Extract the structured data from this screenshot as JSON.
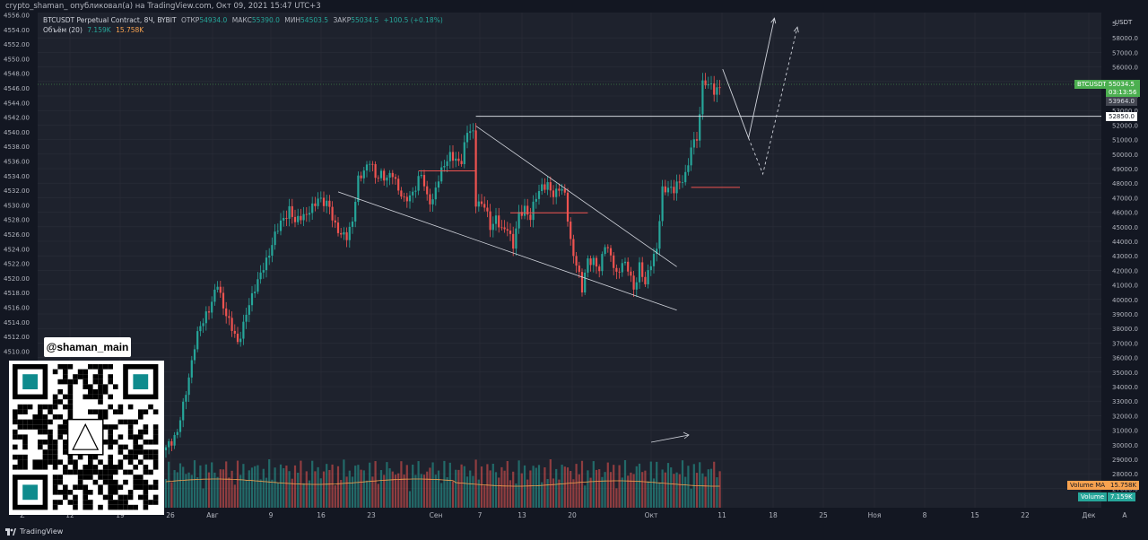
{
  "attribution": "crypto_shaman_ опубликовал(а) на TradingView.com, Окт 09, 2021 15:47 UTC+3",
  "footer_brand": "TradingView",
  "handle": "@shaman_main",
  "legend": {
    "symbol": "BTCUSDT Perpetual Contract, 8Ч, BYBIT",
    "open_label": "ОТКР",
    "open": "54934.0",
    "high_label": "МАКС",
    "high": "55390.0",
    "low_label": "МИН",
    "low": "54503.5",
    "close_label": "ЗАКР",
    "close": "55034.5",
    "change": "+100.5 (+0.18%)",
    "volume_label": "Объём (20)",
    "volume": "7.159K",
    "volume_ma": "15.758K"
  },
  "colors": {
    "up": "#26a69a",
    "down": "#ef5350",
    "background": "#1e222d",
    "grid": "#2a2e39",
    "annotation": "#d1d4dc",
    "price_tag": "#4caf50",
    "volume_ma_tag": "#f7a24f",
    "volume_tag": "#26a69a"
  },
  "tags": {
    "symbol_tag": "BTCUSDT",
    "last_price": "55034.5",
    "countdown": "03:13:56",
    "tag_53964": "53964.0",
    "tag_52850": "52850.0",
    "volume_ma_label": "Volume MA",
    "volume_ma_value": "15.758K",
    "volume_label": "Volume",
    "volume_value": "7.159K",
    "right_axis_unit": "USDT"
  },
  "chart_data": {
    "type": "candlestick",
    "interval": "8h",
    "right_axis": {
      "unit": "USDT",
      "ticks": [
        "5.",
        "58000.0",
        "57000.0",
        "56000.0",
        "55000.0",
        "54000.0",
        "53000.0",
        "52000.0",
        "51000.0",
        "50000.0",
        "49000.0",
        "48000.0",
        "47000.0",
        "46000.0",
        "45000.0",
        "44000.0",
        "43000.0",
        "42000.0",
        "41000.0",
        "40000.0",
        "39000.0",
        "38000.0",
        "37000.0",
        "36000.0",
        "35000.0",
        "34000.0",
        "33000.0",
        "32000.0",
        "31000.0",
        "30000.0",
        "29000.0",
        "28000.0",
        "27000.0"
      ],
      "range": [
        27000,
        59000
      ]
    },
    "left_axis": {
      "ticks": [
        "4556.00",
        "4554.00",
        "4552.00",
        "4550.00",
        "4548.00",
        "4546.00",
        "4544.00",
        "4542.00",
        "4540.00",
        "4538.00",
        "4536.00",
        "4534.00",
        "4532.00",
        "4530.00",
        "4528.00",
        "4526.00",
        "4524.00",
        "4522.00",
        "4520.00",
        "4518.00",
        "4516.00",
        "4514.00",
        "4512.00",
        "4510.00"
      ]
    },
    "x_axis": {
      "ticks": [
        "Z",
        "12",
        "19",
        "26",
        "Авг",
        "9",
        "16",
        "23",
        "Сен",
        "7",
        "13",
        "20",
        "Окт",
        "11",
        "18",
        "25",
        "Ноя",
        "8",
        "15",
        "22",
        "Дек",
        "A"
      ]
    },
    "price_path": [
      [
        0,
        30600
      ],
      [
        4,
        31800
      ],
      [
        6,
        33400
      ],
      [
        8,
        35500
      ],
      [
        10,
        37500
      ],
      [
        12,
        38800
      ],
      [
        14,
        39700
      ],
      [
        16,
        40300
      ],
      [
        18,
        41700
      ],
      [
        20,
        40200
      ],
      [
        22,
        39000
      ],
      [
        24,
        38300
      ],
      [
        25,
        37800
      ],
      [
        27,
        38800
      ],
      [
        29,
        40300
      ],
      [
        31,
        41500
      ],
      [
        33,
        42200
      ],
      [
        35,
        43200
      ],
      [
        37,
        44400
      ],
      [
        39,
        45300
      ],
      [
        41,
        46100
      ],
      [
        43,
        46600
      ],
      [
        45,
        45700
      ],
      [
        47,
        46300
      ],
      [
        49,
        46200
      ],
      [
        51,
        46700
      ],
      [
        53,
        47500
      ],
      [
        55,
        47000
      ],
      [
        57,
        46800
      ],
      [
        59,
        45600
      ],
      [
        61,
        44800
      ],
      [
        63,
        44900
      ],
      [
        65,
        45900
      ],
      [
        67,
        48500
      ],
      [
        69,
        49300
      ],
      [
        71,
        49900
      ],
      [
        73,
        48700
      ],
      [
        75,
        49100
      ],
      [
        77,
        48600
      ],
      [
        79,
        49000
      ],
      [
        81,
        48100
      ],
      [
        83,
        47100
      ],
      [
        85,
        47500
      ],
      [
        87,
        48200
      ],
      [
        89,
        48900
      ],
      [
        91,
        47500
      ],
      [
        93,
        47200
      ],
      [
        95,
        48600
      ],
      [
        97,
        49800
      ],
      [
        99,
        50200
      ],
      [
        101,
        49800
      ],
      [
        103,
        50000
      ],
      [
        105,
        51800
      ],
      [
        107,
        51700
      ],
      [
        108,
        47200
      ],
      [
        109,
        47100
      ],
      [
        111,
        46800
      ],
      [
        113,
        45500
      ],
      [
        115,
        46100
      ],
      [
        117,
        45100
      ],
      [
        119,
        45500
      ],
      [
        121,
        44200
      ],
      [
        123,
        46200
      ],
      [
        125,
        46800
      ],
      [
        127,
        46000
      ],
      [
        129,
        47500
      ],
      [
        131,
        48300
      ],
      [
        133,
        48100
      ],
      [
        135,
        47600
      ],
      [
        137,
        48200
      ],
      [
        139,
        47500
      ],
      [
        141,
        44500
      ],
      [
        143,
        43000
      ],
      [
        145,
        41200
      ],
      [
        147,
        43400
      ],
      [
        149,
        43100
      ],
      [
        151,
        42500
      ],
      [
        153,
        44500
      ],
      [
        155,
        43400
      ],
      [
        157,
        42200
      ],
      [
        159,
        43200
      ],
      [
        161,
        42600
      ],
      [
        163,
        41300
      ],
      [
        165,
        42900
      ],
      [
        167,
        41500
      ],
      [
        169,
        43200
      ],
      [
        171,
        44000
      ],
      [
        173,
        47800
      ],
      [
        175,
        48200
      ],
      [
        177,
        47900
      ],
      [
        179,
        48400
      ],
      [
        181,
        49000
      ],
      [
        183,
        50600
      ],
      [
        185,
        51500
      ],
      [
        186,
        52900
      ],
      [
        187,
        55400
      ],
      [
        189,
        54600
      ],
      [
        190,
        55200
      ],
      [
        191,
        54300
      ],
      [
        192,
        54800
      ],
      [
        193,
        55034.5
      ]
    ],
    "volume_ma_value": "15.758K",
    "volume_value": "7.159K",
    "annotations": [
      {
        "type": "horizontal-line",
        "price": 52850
      },
      {
        "type": "trendline",
        "from": [
          108,
          52200
        ],
        "to": [
          178,
          42800
        ]
      },
      {
        "type": "trendline",
        "from": [
          60,
          47800
        ],
        "to": [
          178,
          39900
        ]
      },
      {
        "type": "level",
        "price": 49200,
        "from": [
          88
        ],
        "to": [
          108
        ],
        "color": "#ef5350"
      },
      {
        "type": "level",
        "price": 46400,
        "from": [
          120
        ],
        "to": [
          147
        ],
        "color": "#ef5350"
      },
      {
        "type": "level",
        "price": 48100,
        "from": [
          183
        ],
        "to": [
          200
        ],
        "color": "#ef5350"
      },
      {
        "type": "projection-arrow",
        "style": "solid",
        "points": [
          [
            194,
            56000
          ],
          [
            203,
            51400
          ],
          [
            212,
            59400
          ]
        ]
      },
      {
        "type": "projection-arrow",
        "style": "dashed",
        "points": [
          [
            203,
            51400
          ],
          [
            208,
            49000
          ],
          [
            220,
            58800
          ]
        ]
      }
    ]
  }
}
